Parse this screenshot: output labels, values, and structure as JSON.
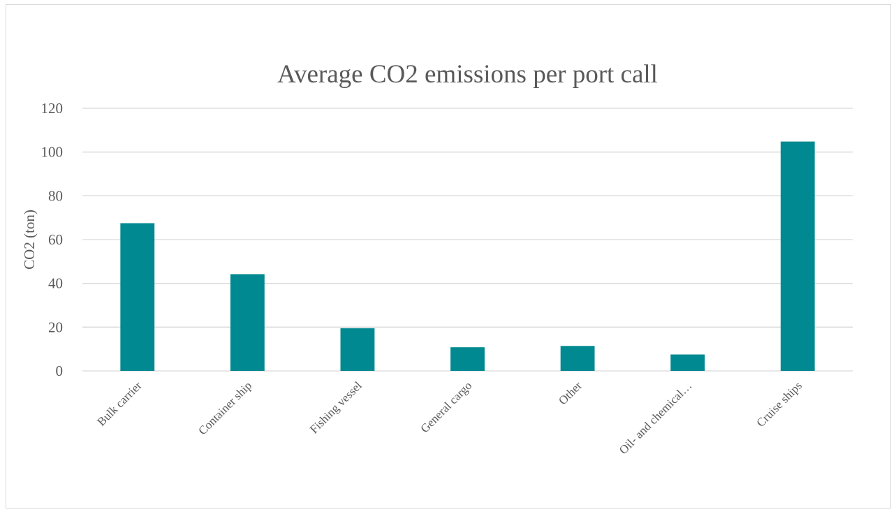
{
  "chart_data": {
    "type": "bar",
    "title": "Average CO2 emissions per port call",
    "xlabel": "",
    "ylabel": "CO2 (ton)",
    "categories": [
      "Bulk carrier",
      "Container ship",
      "Fishing vessel",
      "General cargo",
      "Other",
      "Oil- and chemical…",
      "Cruise ships"
    ],
    "values": [
      67.5,
      44.2,
      19.5,
      10.8,
      11.4,
      7.5,
      104.8
    ],
    "ylim": [
      0,
      120
    ],
    "yticks": [
      "0",
      "20",
      "40",
      "60",
      "80",
      "100",
      "120"
    ],
    "grid": true,
    "legend": "none",
    "colors": {
      "bar": "#008991",
      "grid": "#d9d9d9",
      "text": "#595959"
    }
  }
}
